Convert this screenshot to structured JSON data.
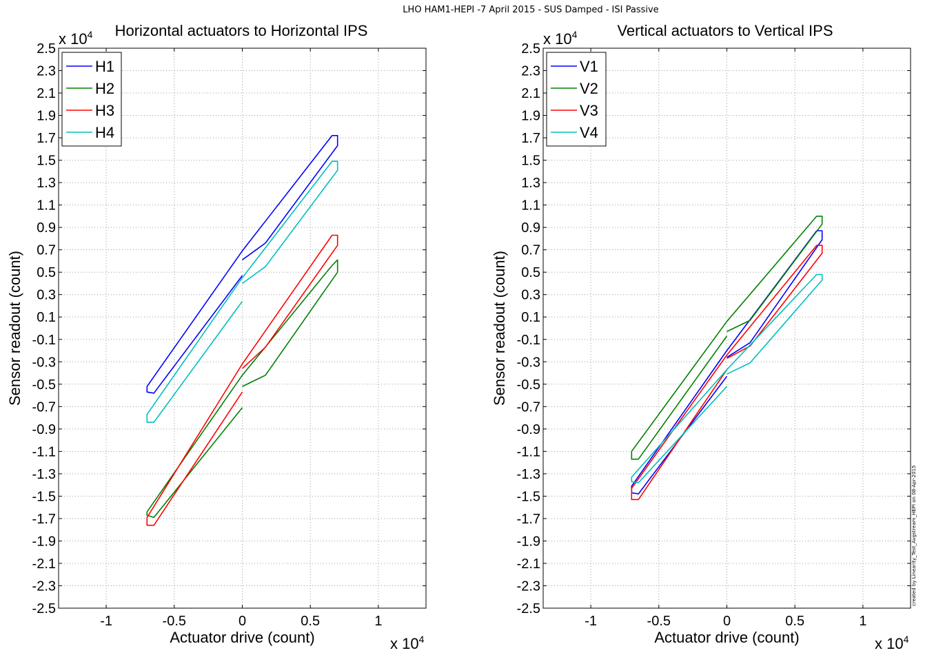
{
  "figure": {
    "suptitle": "LHO HAM1-HEPI -7 April 2015 - SUS Damped - ISI Passive",
    "credit": "created by Linearity_Test_Avgstream_HEPI on 08-Apr-2015"
  },
  "chart_data": [
    {
      "type": "line",
      "title": "Horizontal actuators to Horizontal IPS",
      "xlabel": "Actuator drive (count)",
      "ylabel": "Sensor readout (count)",
      "x_exponent_label": "x 10",
      "y_exponent_label": "x 10",
      "exponent": "4",
      "xlim": [
        -13500,
        13500
      ],
      "ylim": [
        -25000,
        25000
      ],
      "xtick_values": [
        -10000,
        -5000,
        0,
        5000,
        10000
      ],
      "xtick_labels": [
        "-1",
        "-0.5",
        "0",
        "0.5",
        "1"
      ],
      "ytick_values": [
        -25000,
        -23000,
        -21000,
        -19000,
        -17000,
        -15000,
        -13000,
        -11000,
        -9000,
        -7000,
        -5000,
        -3000,
        -1000,
        1000,
        3000,
        5000,
        7000,
        9000,
        11000,
        13000,
        15000,
        17000,
        19000,
        21000,
        23000,
        25000
      ],
      "ytick_labels": [
        "-2.5",
        "-2.3",
        "-2.1",
        "-1.9",
        "-1.7",
        "-1.5",
        "-1.3",
        "-1.1",
        "-0.9",
        "-0.7",
        "-0.5",
        "-0.3",
        "-0.1",
        "0.1",
        "0.3",
        "0.5",
        "0.7",
        "0.9",
        "1.1",
        "1.3",
        "1.5",
        "1.7",
        "1.9",
        "2.1",
        "2.3",
        "2.5"
      ],
      "grid": true,
      "legend_position": "top-left",
      "series": [
        {
          "name": "H1",
          "color": "#0000ff",
          "points": [
            [
              0,
              4700
            ],
            [
              -6500,
              -5800
            ],
            [
              -7000,
              -5700
            ],
            [
              -7000,
              -5200
            ],
            [
              0,
              6900
            ],
            [
              6600,
              17200
            ],
            [
              7000,
              17200
            ],
            [
              7000,
              16300
            ],
            [
              1700,
              7600
            ],
            [
              0,
              6100
            ]
          ]
        },
        {
          "name": "H2",
          "color": "#008000",
          "points": [
            [
              0,
              -7100
            ],
            [
              -6500,
              -16900
            ],
            [
              -7000,
              -16700
            ],
            [
              -7000,
              -16400
            ],
            [
              0,
              -4200
            ],
            [
              6600,
              5600
            ],
            [
              7000,
              6100
            ],
            [
              7000,
              5000
            ],
            [
              1700,
              -4200
            ],
            [
              0,
              -5200
            ]
          ]
        },
        {
          "name": "H3",
          "color": "#ff0000",
          "points": [
            [
              0,
              -5700
            ],
            [
              -6500,
              -17600
            ],
            [
              -7000,
              -17600
            ],
            [
              -7000,
              -16900
            ],
            [
              0,
              -3200
            ],
            [
              6600,
              8300
            ],
            [
              7000,
              8300
            ],
            [
              7000,
              7400
            ],
            [
              1700,
              -1700
            ],
            [
              0,
              -3600
            ]
          ]
        },
        {
          "name": "H4",
          "color": "#00bfbf",
          "points": [
            [
              0,
              2400
            ],
            [
              -6500,
              -8400
            ],
            [
              -7000,
              -8400
            ],
            [
              -7000,
              -7700
            ],
            [
              0,
              4500
            ],
            [
              6600,
              14900
            ],
            [
              7000,
              14900
            ],
            [
              7000,
              14100
            ],
            [
              1700,
              5500
            ],
            [
              0,
              4000
            ]
          ]
        }
      ]
    },
    {
      "type": "line",
      "title": "Vertical actuators to Vertical IPS",
      "xlabel": "Actuator drive (count)",
      "ylabel": "Sensor readout (count)",
      "x_exponent_label": "x 10",
      "y_exponent_label": "x 10",
      "exponent": "4",
      "xlim": [
        -13500,
        13500
      ],
      "ylim": [
        -25000,
        25000
      ],
      "xtick_values": [
        -10000,
        -5000,
        0,
        5000,
        10000
      ],
      "xtick_labels": [
        "-1",
        "-0.5",
        "0",
        "0.5",
        "1"
      ],
      "ytick_values": [
        -25000,
        -23000,
        -21000,
        -19000,
        -17000,
        -15000,
        -13000,
        -11000,
        -9000,
        -7000,
        -5000,
        -3000,
        -1000,
        1000,
        3000,
        5000,
        7000,
        9000,
        11000,
        13000,
        15000,
        17000,
        19000,
        21000,
        23000,
        25000
      ],
      "ytick_labels": [
        "-2.5",
        "-2.3",
        "-2.1",
        "-1.9",
        "-1.7",
        "-1.5",
        "-1.3",
        "-1.1",
        "-0.9",
        "-0.7",
        "-0.5",
        "-0.3",
        "-0.1",
        "0.1",
        "0.3",
        "0.5",
        "0.7",
        "0.9",
        "1.1",
        "1.3",
        "1.5",
        "1.7",
        "1.9",
        "2.1",
        "2.3",
        "2.5"
      ],
      "grid": true,
      "legend_position": "top-left",
      "series": [
        {
          "name": "V1",
          "color": "#0000ff",
          "points": [
            [
              0,
              -4300
            ],
            [
              -6500,
              -14800
            ],
            [
              -7000,
              -14700
            ],
            [
              -7000,
              -14100
            ],
            [
              0,
              -2000
            ],
            [
              6600,
              8700
            ],
            [
              7000,
              8700
            ],
            [
              7000,
              7900
            ],
            [
              1700,
              -1300
            ],
            [
              0,
              -2600
            ]
          ]
        },
        {
          "name": "V2",
          "color": "#008000",
          "points": [
            [
              0,
              -700
            ],
            [
              -6500,
              -11700
            ],
            [
              -7000,
              -11700
            ],
            [
              -7000,
              -11000
            ],
            [
              0,
              600
            ],
            [
              6600,
              10000
            ],
            [
              7000,
              10000
            ],
            [
              7000,
              9300
            ],
            [
              1700,
              700
            ],
            [
              0,
              -300
            ]
          ]
        },
        {
          "name": "V3",
          "color": "#ff0000",
          "points": [
            [
              0,
              -3700
            ],
            [
              -6500,
              -15300
            ],
            [
              -7000,
              -15300
            ],
            [
              -7000,
              -14300
            ],
            [
              0,
              -2400
            ],
            [
              6600,
              7400
            ],
            [
              7000,
              7400
            ],
            [
              7000,
              6700
            ],
            [
              1700,
              -1600
            ],
            [
              0,
              -2700
            ]
          ]
        },
        {
          "name": "V4",
          "color": "#00bfbf",
          "points": [
            [
              0,
              -5200
            ],
            [
              -6500,
              -13800
            ],
            [
              -7000,
              -13700
            ],
            [
              -7000,
              -13300
            ],
            [
              0,
              -3700
            ],
            [
              6600,
              4800
            ],
            [
              7000,
              4800
            ],
            [
              7000,
              4300
            ],
            [
              1700,
              -3100
            ],
            [
              0,
              -4100
            ]
          ]
        }
      ]
    }
  ]
}
